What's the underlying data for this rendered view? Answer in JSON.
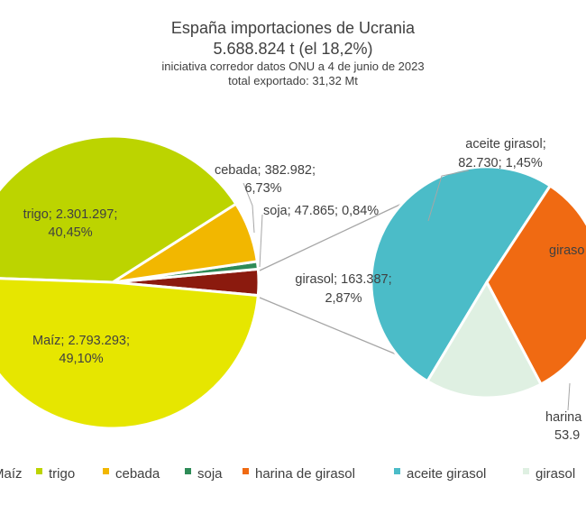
{
  "chart_data": {
    "type": "pie",
    "title": "España importaciones de Ucrania",
    "subtitle": "5.688.824 t (el 18,2%)",
    "note1": "iniciativa corredor datos ONU a 4 de junio de 2023",
    "note2": "total exportado: 31,32 Mt",
    "main_pie": [
      {
        "name": "Maíz",
        "value": 2793293,
        "pct": "49,10%",
        "color": "#e6e600",
        "label1": "Maíz; 2.793.293;",
        "label2": "49,10%"
      },
      {
        "name": "trigo",
        "value": 2301297,
        "pct": "40,45%",
        "color": "#bcd400",
        "label1": "trigo; 2.301.297;",
        "label2": "40,45%"
      },
      {
        "name": "cebada",
        "value": 382982,
        "pct": "6,73%",
        "color": "#f2b700",
        "label1": "cebada; 382.982;",
        "label2": "6,73%"
      },
      {
        "name": "soja",
        "value": 47865,
        "pct": "0,84%",
        "color": "#2e8b57",
        "label1": "soja; 47.865; 0,84%",
        "label2": ""
      },
      {
        "name": "girasol",
        "value": 163387,
        "pct": "2,87%",
        "color": "#8b1a0e",
        "label1": "girasol; 163.387;",
        "label2": "2,87%"
      }
    ],
    "secondary_pie": [
      {
        "name": "aceite girasol",
        "value": 82730,
        "pct": "1,45%",
        "color": "#4bbcc8",
        "label1": "aceite girasol;",
        "label2": "82.730; 1,45%"
      },
      {
        "name": "harina de girasol",
        "value": 53900,
        "color": "#f06a12",
        "label1": "harina",
        "label2": "53.9"
      },
      {
        "name": "girasol",
        "value": 26757,
        "color": "#dff0e2",
        "label1": "giraso",
        "label2": ""
      }
    ],
    "legend": [
      {
        "name": "Maíz",
        "text": "Maíz",
        "color": "#e6e600"
      },
      {
        "name": "trigo",
        "text": "trigo",
        "color": "#bcd400"
      },
      {
        "name": "cebada",
        "text": "cebada",
        "color": "#f2b700"
      },
      {
        "name": "soja",
        "text": "soja",
        "color": "#2e8b57"
      },
      {
        "name": "harina de girasol",
        "text": "harina de girasol",
        "color": "#f06a12"
      },
      {
        "name": "aceite girasol",
        "text": "aceite girasol",
        "color": "#4bbcc8"
      },
      {
        "name": "girasol",
        "text": "girasol",
        "color": "#dff0e2"
      }
    ]
  }
}
